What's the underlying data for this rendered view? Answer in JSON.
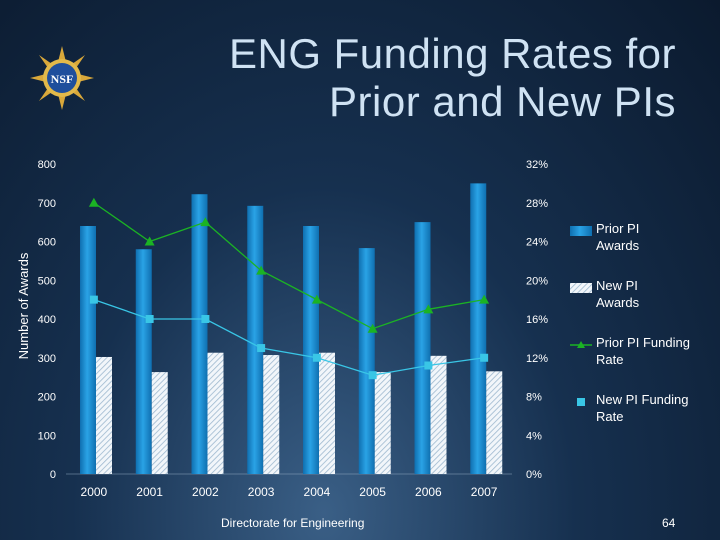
{
  "slide": {
    "title_line1": "ENG Funding Rates for",
    "title_line2": "Prior and New PIs",
    "footer": "Directorate for Engineering",
    "page_number": "64",
    "logo_text": "NSF"
  },
  "colors": {
    "prior_awards": "#1a8fd0",
    "new_awards": "#e6eef5",
    "prior_rate": "#1bb324",
    "new_rate": "#39c6e6"
  },
  "chart_data": {
    "type": "bar",
    "categories": [
      "2000",
      "2001",
      "2002",
      "2003",
      "2004",
      "2005",
      "2006",
      "2007"
    ],
    "ylabel": "Number of Awards",
    "ylim": [
      0,
      800
    ],
    "yticks": [
      "0",
      "100",
      "200",
      "300",
      "400",
      "500",
      "600",
      "700",
      "800"
    ],
    "y2lim": [
      0,
      32
    ],
    "y2ticks": [
      "0%",
      "4%",
      "8%",
      "12%",
      "16%",
      "20%",
      "24%",
      "28%",
      "32%"
    ],
    "legend_position": "right",
    "series": [
      {
        "name": "Prior PI Awards",
        "kind": "bar",
        "values": [
          640,
          580,
          722,
          692,
          640,
          583,
          650,
          750
        ]
      },
      {
        "name": "New PI Awards",
        "kind": "bar",
        "values": [
          302,
          263,
          313,
          307,
          313,
          263,
          305,
          265
        ]
      },
      {
        "name": "Prior PI Funding Rate",
        "kind": "line",
        "axis": "right",
        "values": [
          28,
          24,
          26,
          21,
          18,
          15,
          17,
          18
        ]
      },
      {
        "name": "New PI Funding Rate",
        "kind": "line",
        "axis": "right",
        "values": [
          18,
          16,
          16,
          13,
          12,
          10.2,
          11.2,
          12
        ]
      }
    ]
  }
}
